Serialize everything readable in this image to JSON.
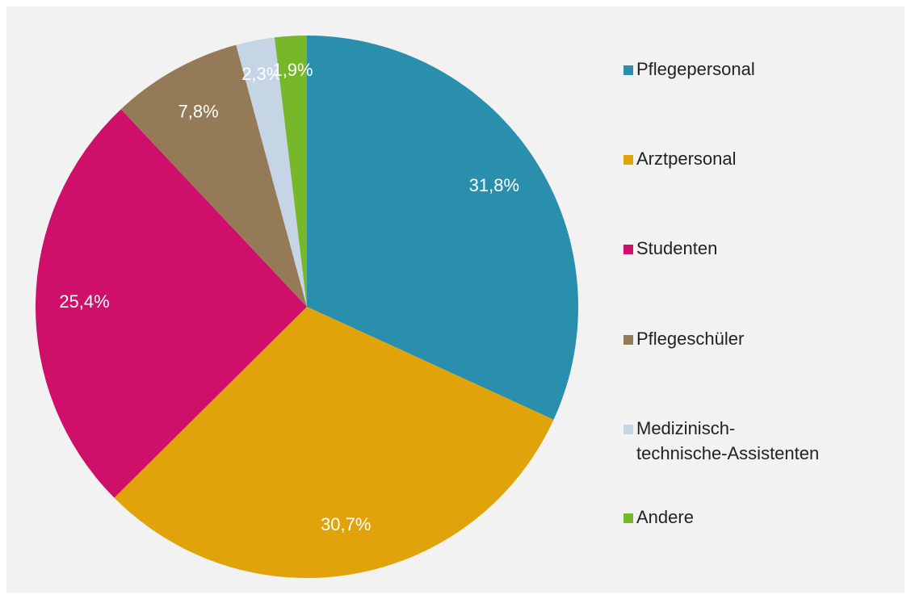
{
  "chart_data": {
    "type": "pie",
    "categories": [
      "Pflegepersonal",
      "Arztpersonal",
      "Studenten",
      "Pflegeschüler",
      "Medizinisch-technische-Assistenten",
      "Andere"
    ],
    "values": [
      31.8,
      30.7,
      25.4,
      7.8,
      2.3,
      1.9
    ],
    "value_labels": [
      "31,8%",
      "30,7%",
      "25,4%",
      "7,8%",
      "2,3%",
      "1,9%"
    ],
    "colors": [
      "#2a8fad",
      "#e0a40a",
      "#cf106a",
      "#957a58",
      "#c5d5e6",
      "#76b82a"
    ],
    "legend": "right"
  }
}
